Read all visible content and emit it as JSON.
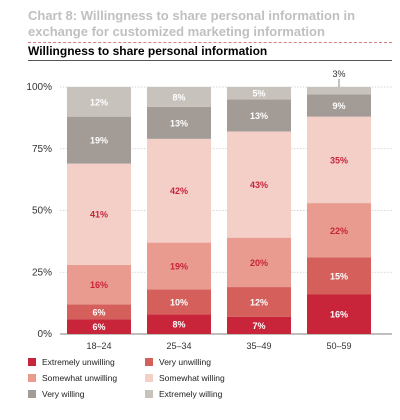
{
  "header": {
    "title": "Chart 8: Willingness to share personal information in exchange for customized marketing information",
    "subtitle": "Willingness to share personal information"
  },
  "chart_data": {
    "type": "bar",
    "stacked": true,
    "categories": [
      "18–24",
      "25–34",
      "35–49",
      "50–59"
    ],
    "series": [
      {
        "name": "Extremely unwilling",
        "color": "#c8243a",
        "values": [
          6,
          8,
          7,
          16
        ],
        "labels": [
          "6%",
          "8%",
          "7%",
          "16%"
        ]
      },
      {
        "name": "Very unwilling",
        "color": "#d55f5a",
        "values": [
          6,
          10,
          12,
          15
        ],
        "labels": [
          "6%",
          "10%",
          "12%",
          "15%"
        ]
      },
      {
        "name": "Somewhat unwilling",
        "color": "#e89b8e",
        "values": [
          16,
          19,
          20,
          22
        ],
        "labels": [
          "16%",
          "19%",
          "20%",
          "22%"
        ]
      },
      {
        "name": "Somewhat willing",
        "color": "#f3cfc7",
        "values": [
          41,
          42,
          43,
          35
        ],
        "labels": [
          "41%",
          "42%",
          "43%",
          "35%"
        ]
      },
      {
        "name": "Very willing",
        "color": "#a39b95",
        "values": [
          19,
          13,
          13,
          9
        ],
        "labels": [
          "19%",
          "13%",
          "13%",
          "9%"
        ]
      },
      {
        "name": "Extremely willing",
        "color": "#c8c2bc",
        "values": [
          12,
          8,
          5,
          3
        ],
        "labels": [
          "12%",
          "8%",
          "5%",
          "3%"
        ]
      }
    ],
    "yticks": [
      "0%",
      "25%",
      "50%",
      "75%",
      "100%"
    ],
    "ylim": [
      0,
      100
    ],
    "grid": true,
    "legend": "bottom"
  }
}
